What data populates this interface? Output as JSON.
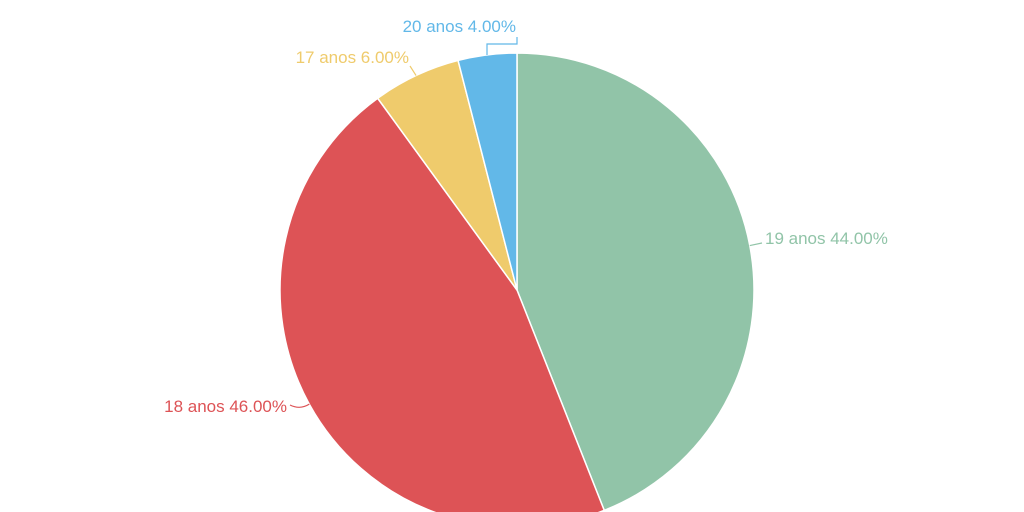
{
  "chart_data": {
    "type": "pie",
    "start_angle_deg": 0,
    "direction": "clockwise",
    "slices": [
      {
        "label": "19 anos",
        "value": 44.0,
        "display": "19 anos 44.00%",
        "color": "#91c4a8"
      },
      {
        "label": "18 anos",
        "value": 46.0,
        "display": "18 anos 46.00%",
        "color": "#dd5356"
      },
      {
        "label": "17 anos",
        "value": 6.0,
        "display": "17 anos 6.00%",
        "color": "#efcb6c"
      },
      {
        "label": "20 anos",
        "value": 4.0,
        "display": "20 anos 4.00%",
        "color": "#62b8e8"
      }
    ]
  }
}
